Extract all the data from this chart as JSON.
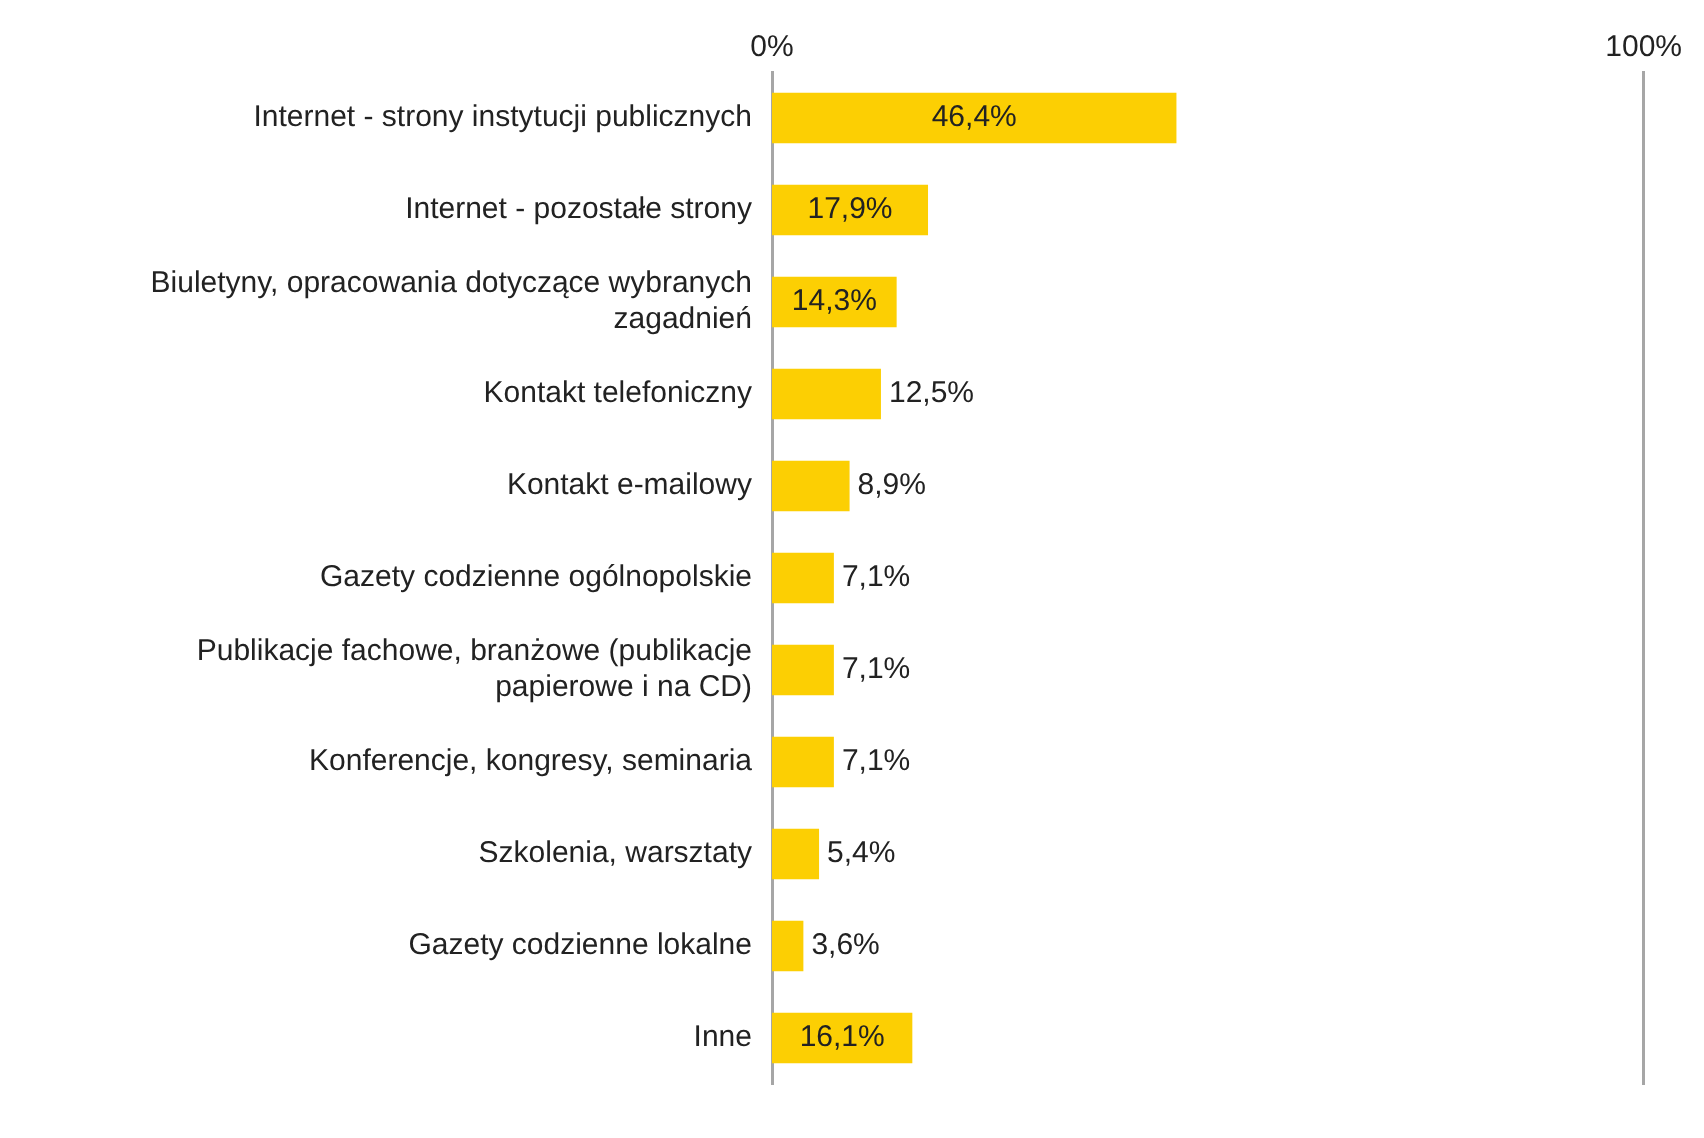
{
  "chart_data": {
    "type": "bar",
    "orientation": "horizontal",
    "categories": [
      "Internet - strony instytucji publicznych",
      "Internet - pozostałe strony",
      "Biuletyny, opracowania dotyczące wybranych zagadnień",
      "Kontakt telefoniczny",
      "Kontakt e-mailowy",
      "Gazety codzienne ogólnopolskie",
      "Publikacje fachowe, branżowe (publikacje papierowe i na CD)",
      "Konferencje, kongresy, seminaria",
      "Szkolenia, warsztaty",
      "Gazety codzienne lokalne",
      "Inne"
    ],
    "values": [
      46.4,
      17.9,
      14.3,
      12.5,
      8.9,
      7.1,
      7.1,
      7.1,
      5.4,
      3.6,
      16.1
    ],
    "value_labels": [
      "46,4%",
      "17,9%",
      "14,3%",
      "12,5%",
      "8,9%",
      "7,1%",
      "7,1%",
      "7,1%",
      "5,4%",
      "3,6%",
      "16,1%"
    ],
    "color": "#fccf03",
    "xlim": [
      0,
      100
    ],
    "xticks": [
      {
        "value": 0,
        "label": "0%"
      },
      {
        "value": 100,
        "label": "100%"
      }
    ],
    "legend": false
  }
}
